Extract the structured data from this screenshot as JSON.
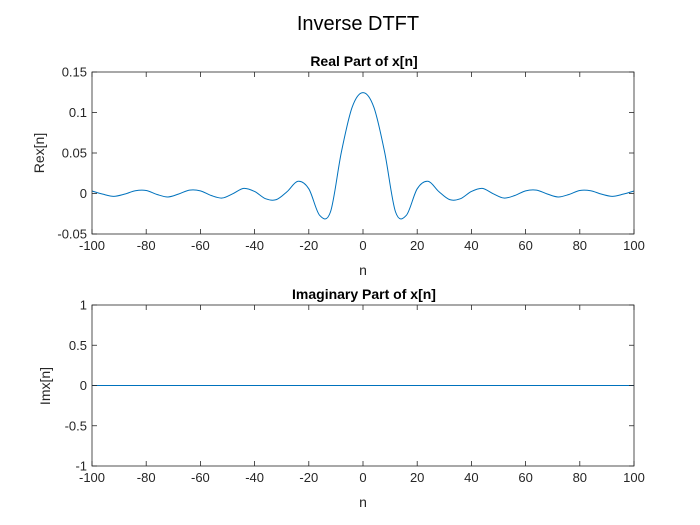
{
  "figure_title": "Inverse DTFT",
  "line_color": "#0072BD",
  "chart_data": [
    {
      "type": "line",
      "title": "Real Part of x[n]",
      "xlabel": "n",
      "ylabel": "Rex[n]",
      "xlim": [
        -100,
        100
      ],
      "ylim": [
        -0.05,
        0.15
      ],
      "xticks": [
        -100,
        -80,
        -60,
        -40,
        -20,
        0,
        20,
        40,
        60,
        80,
        100
      ],
      "yticks": [
        -0.05,
        0,
        0.05,
        0.1,
        0.15
      ],
      "xtick_labels": [
        "-100",
        "-80",
        "-60",
        "-40",
        "-20",
        "0",
        "20",
        "40",
        "60",
        "80",
        "100"
      ],
      "ytick_labels": [
        "-0.05",
        "0",
        "0.05",
        "0.1",
        "0.15"
      ],
      "grid": false,
      "series": [
        {
          "x": [
            -100,
            -96,
            -92,
            -88,
            -84,
            -80,
            -76,
            -72,
            -68,
            -64,
            -60,
            -56,
            -52,
            -48,
            -44,
            -40,
            -36,
            -32,
            -28,
            -24,
            -20,
            -16,
            -12,
            -8,
            -4,
            0,
            4,
            8,
            12,
            16,
            20,
            24,
            28,
            32,
            36,
            40,
            44,
            48,
            52,
            56,
            60,
            64,
            68,
            72,
            76,
            80,
            84,
            88,
            92,
            96,
            100
          ],
          "values": [
            0.0031,
            -0.0008,
            -0.0035,
            -0.0008,
            0.0034,
            0.0037,
            -0.0012,
            -0.0043,
            -0.0006,
            0.0042,
            0.0033,
            -0.0025,
            -0.0056,
            -0.0002,
            0.0063,
            0.0025,
            -0.0064,
            -0.0076,
            0.0023,
            0.0151,
            0.0058,
            -0.0269,
            -0.0227,
            0.0508,
            0.1065,
            0.1245,
            0.1065,
            0.0508,
            -0.0227,
            -0.0269,
            0.0058,
            0.0151,
            0.0023,
            -0.0076,
            -0.0064,
            0.0025,
            0.0063,
            -0.0002,
            -0.0056,
            -0.0025,
            0.0033,
            0.0042,
            -0.0006,
            -0.0043,
            -0.0012,
            0.0037,
            0.0034,
            -0.0008,
            -0.0035,
            -0.0008,
            0.0031
          ]
        }
      ]
    },
    {
      "type": "line",
      "title": "Imaginary Part of x[n]",
      "xlabel": "n",
      "ylabel": "Imx[n]",
      "xlim": [
        -100,
        100
      ],
      "ylim": [
        -1,
        1
      ],
      "xticks": [
        -100,
        -80,
        -60,
        -40,
        -20,
        0,
        20,
        40,
        60,
        80,
        100
      ],
      "yticks": [
        -1,
        -0.5,
        0,
        0.5,
        1
      ],
      "xtick_labels": [
        "-100",
        "-80",
        "-60",
        "-40",
        "-20",
        "0",
        "20",
        "40",
        "60",
        "80",
        "100"
      ],
      "ytick_labels": [
        "-1",
        "-0.5",
        "0",
        "0.5",
        "1"
      ],
      "grid": false,
      "series": [
        {
          "x": [
            -100,
            100
          ],
          "values": [
            0,
            0
          ]
        }
      ]
    }
  ]
}
